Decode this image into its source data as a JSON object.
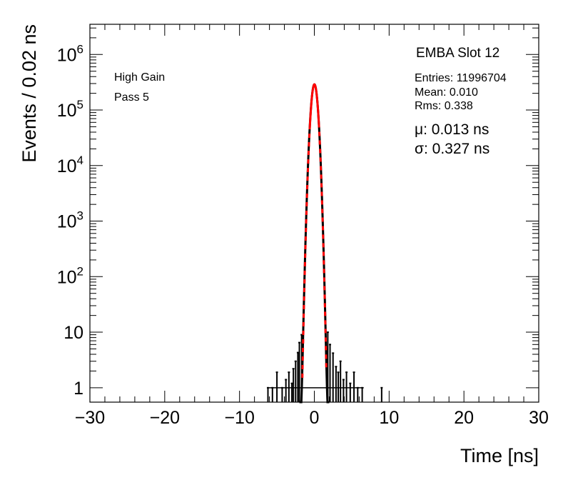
{
  "chart_data": {
    "type": "histogram",
    "title": "EMBA Slot 12",
    "xlabel": "Time [ns]",
    "ylabel": "Events / 0.02 ns",
    "xlim": [
      -30,
      30
    ],
    "ylim": [
      0.55,
      3500000
    ],
    "yscale": "log",
    "grid": false,
    "x_ticks": [
      "−30",
      "−20",
      "−10",
      "0",
      "10",
      "20",
      "30"
    ],
    "y_ticks": [
      {
        "value": 1,
        "base": "1",
        "exp": ""
      },
      {
        "value": 10,
        "base": "10",
        "exp": ""
      },
      {
        "value": 100,
        "base": "10",
        "exp": "2"
      },
      {
        "value": 1000,
        "base": "10",
        "exp": "3"
      },
      {
        "value": 10000,
        "base": "10",
        "exp": "4"
      },
      {
        "value": 100000,
        "base": "10",
        "exp": "5"
      },
      {
        "value": 1000000,
        "base": "10",
        "exp": "6"
      }
    ],
    "annotations": {
      "left": [
        "High Gain",
        "Pass 5"
      ],
      "stats": [
        "Entries: 11996704",
        "Mean: 0.010",
        "Rms: 0.338"
      ],
      "fit": [
        {
          "symbol": "μ",
          "text": ": 0.013 ns"
        },
        {
          "symbol": "σ",
          "text": ": 0.327 ns"
        }
      ]
    },
    "series": [
      {
        "kind": "histogram",
        "color": "#000000",
        "peak_counts": 290000,
        "core": {
          "mean": 0.01,
          "sigma": 0.33
        },
        "tails": [
          {
            "x": -6.2,
            "y": 1
          },
          {
            "x": -5.6,
            "y": 1
          },
          {
            "x": -5.0,
            "y": 1.9
          },
          {
            "x": -4.3,
            "y": 1
          },
          {
            "x": -3.8,
            "y": 1.4
          },
          {
            "x": -3.4,
            "y": 1.9
          },
          {
            "x": -3.0,
            "y": 1.2
          },
          {
            "x": -2.8,
            "y": 2.2
          },
          {
            "x": -2.5,
            "y": 3.0
          },
          {
            "x": -2.2,
            "y": 4.3
          },
          {
            "x": -2.0,
            "y": 6.5
          },
          {
            "x": -1.7,
            "y": 9
          },
          {
            "x": 1.8,
            "y": 10
          },
          {
            "x": 2.1,
            "y": 6
          },
          {
            "x": 2.5,
            "y": 4.2
          },
          {
            "x": 2.9,
            "y": 2.4
          },
          {
            "x": 3.2,
            "y": 1.9
          },
          {
            "x": 3.5,
            "y": 3.0
          },
          {
            "x": 3.9,
            "y": 1.4
          },
          {
            "x": 4.3,
            "y": 1.9
          },
          {
            "x": 4.8,
            "y": 1.2
          },
          {
            "x": 5.3,
            "y": 1.9
          },
          {
            "x": 5.8,
            "y": 1
          },
          {
            "x": 6.4,
            "y": 1
          },
          {
            "x": 9.0,
            "y": 1.0
          }
        ]
      },
      {
        "kind": "gaussian-fit",
        "color": "#ff0000",
        "mu": 0.013,
        "sigma": 0.327,
        "amplitude": 290000,
        "solid_range": [
          -0.6,
          0.6
        ],
        "dashed_range": [
          -1.6,
          1.6
        ]
      }
    ]
  }
}
